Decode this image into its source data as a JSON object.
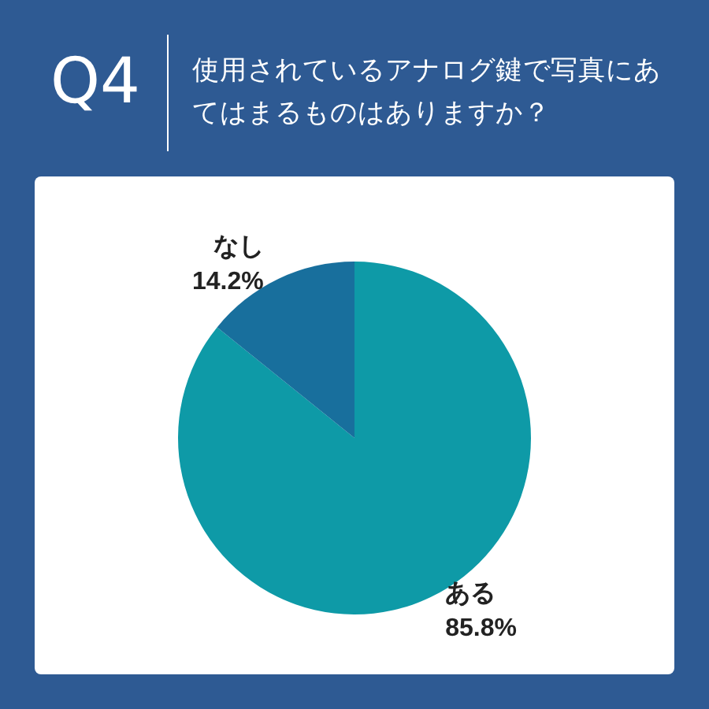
{
  "chart_data": {
    "type": "pie",
    "title": "Q4",
    "subtitle": "使用されているアナログ鍵で写真にあてはまるものはありますか？",
    "categories": [
      "ある",
      "なし"
    ],
    "values": [
      85.8,
      14.2
    ],
    "colors": [
      "#0e9aa7",
      "#186f9d"
    ],
    "value_labels": [
      "85.8%",
      "14.2%"
    ]
  }
}
